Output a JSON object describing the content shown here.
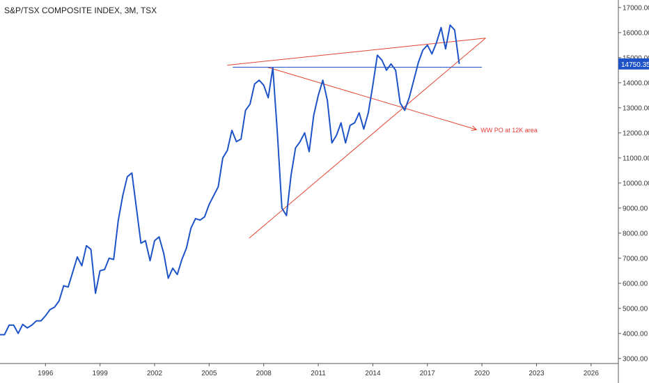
{
  "chart_data": {
    "type": "line",
    "title": "S&P/TSX COMPOSITE INDEX, 3M, TSX",
    "x_ticks": [
      "1996",
      "1999",
      "2002",
      "2005",
      "2008",
      "2011",
      "2014",
      "2017",
      "2020",
      "2023",
      "2026"
    ],
    "y_ticks": [
      "3000.00",
      "4000.00",
      "5000.00",
      "6000.00",
      "7000.00",
      "8000.00",
      "9000.00",
      "10000.00",
      "11000.00",
      "12000.00",
      "13000.00",
      "14000.00",
      "15000.00",
      "16000.00",
      "17000.00"
    ],
    "xlim": [
      1993.5,
      2027.5
    ],
    "ylim": [
      2800,
      17300
    ],
    "last_value": "14750.35",
    "series": [
      {
        "color": "#1e53c8",
        "x": [
          1993.5,
          1993.75,
          1994.0,
          1994.25,
          1994.5,
          1994.75,
          1995.0,
          1995.25,
          1995.5,
          1995.75,
          1996.0,
          1996.25,
          1996.5,
          1996.75,
          1997.0,
          1997.25,
          1997.5,
          1997.75,
          1998.0,
          1998.25,
          1998.5,
          1998.75,
          1999.0,
          1999.25,
          1999.5,
          1999.75,
          2000.0,
          2000.25,
          2000.5,
          2000.75,
          2001.0,
          2001.25,
          2001.5,
          2001.75,
          2002.0,
          2002.25,
          2002.5,
          2002.75,
          2003.0,
          2003.25,
          2003.5,
          2003.75,
          2004.0,
          2004.25,
          2004.5,
          2004.75,
          2005.0,
          2005.25,
          2005.5,
          2005.75,
          2006.0,
          2006.25,
          2006.5,
          2006.75,
          2007.0,
          2007.25,
          2007.5,
          2007.75,
          2008.0,
          2008.25,
          2008.5,
          2008.75,
          2009.0,
          2009.25,
          2009.5,
          2009.75,
          2010.0,
          2010.25,
          2010.5,
          2010.75,
          2011.0,
          2011.25,
          2011.5,
          2011.75,
          2012.0,
          2012.25,
          2012.5,
          2012.75,
          2013.0,
          2013.25,
          2013.5,
          2013.75,
          2014.0,
          2014.25,
          2014.5,
          2014.75,
          2015.0,
          2015.25,
          2015.5,
          2015.75,
          2016.0,
          2016.25,
          2016.5,
          2016.75,
          2017.0,
          2017.25,
          2017.5,
          2017.75,
          2018.0,
          2018.25,
          2018.5,
          2018.75
        ],
        "y": [
          3950,
          3950,
          4330,
          4330,
          4000,
          4360,
          4220,
          4330,
          4500,
          4500,
          4700,
          4950,
          5050,
          5300,
          5900,
          5850,
          6450,
          7050,
          6700,
          7500,
          7350,
          5600,
          6500,
          6550,
          7000,
          6950,
          8500,
          9500,
          10250,
          10400,
          9000,
          7600,
          7700,
          6900,
          7700,
          7850,
          7200,
          6200,
          6600,
          6350,
          6950,
          7400,
          8200,
          8580,
          8520,
          8650,
          9150,
          9500,
          9850,
          11000,
          11300,
          12100,
          11650,
          11750,
          12900,
          13150,
          13950,
          14100,
          13900,
          13400,
          14600,
          12000,
          9000,
          8700,
          10300,
          11400,
          11650,
          12000,
          11250,
          12700,
          13500,
          14100,
          13300,
          11600,
          11900,
          12400,
          11600,
          12300,
          12400,
          12800,
          12150,
          12800,
          13900,
          15100,
          14900,
          14500,
          14750,
          14500,
          13200,
          12900,
          13400,
          14100,
          14800,
          15300,
          15500,
          15150,
          15600,
          16200,
          15350,
          16300,
          16100,
          14750
        ]
      }
    ],
    "annotations": [
      {
        "text": "WW PO at 12K area"
      }
    ]
  }
}
